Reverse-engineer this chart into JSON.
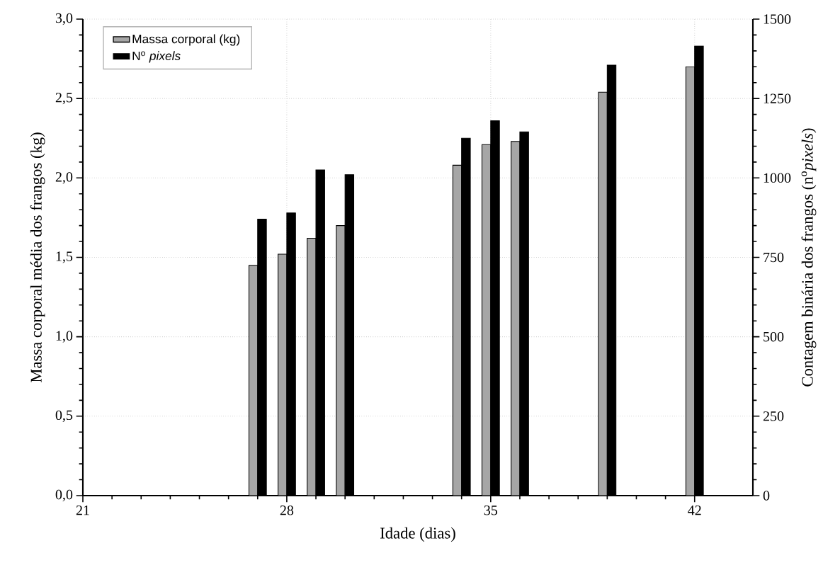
{
  "chart_data": {
    "type": "bar",
    "xlabel": "Idade (dias)",
    "ylabel": "Massa corporal média dos frangos (kg)",
    "y2label": "Contagem binária dos frangos (n$^{o}$*pixels*)",
    "x": [
      27,
      28,
      29,
      30,
      34,
      35,
      36,
      39,
      42
    ],
    "series": [
      {
        "name": "Massa corporal (kg)",
        "color": "#a6a6a6",
        "values": [
          1.45,
          1.52,
          1.62,
          1.7,
          2.08,
          2.21,
          2.23,
          2.54,
          2.7
        ]
      },
      {
        "name": "N$^{o}$ *pixels*",
        "color": "#000000",
        "axis": "y2",
        "values": [
          870,
          890,
          1025,
          1010,
          1125,
          1180,
          1145,
          1355,
          1415
        ]
      }
    ],
    "xlim": [
      21,
      44
    ],
    "xticks": [
      21,
      28,
      35,
      42
    ],
    "ylim": [
      0,
      3
    ],
    "yticks": [
      {
        "value": 0,
        "label": "0,0"
      },
      {
        "value": 0.5,
        "label": "0,5"
      },
      {
        "value": 1,
        "label": "1,0"
      },
      {
        "value": 1.5,
        "label": "1,5"
      },
      {
        "value": 2,
        "label": "2,0"
      },
      {
        "value": 2.5,
        "label": "2,5"
      },
      {
        "value": 3,
        "label": "3,0"
      }
    ],
    "y2lim": [
      0,
      1500
    ],
    "y2ticks": [
      0,
      250,
      500,
      750,
      1000,
      1250,
      1500
    ],
    "grid": true,
    "legend": "top left"
  }
}
